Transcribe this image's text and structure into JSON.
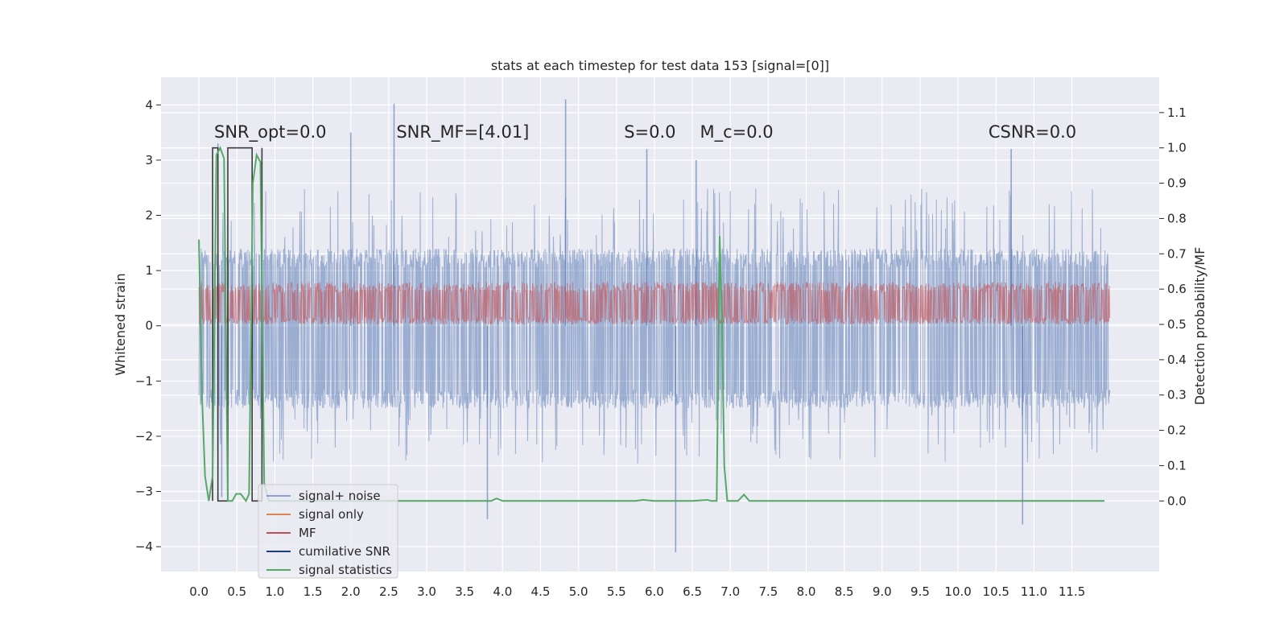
{
  "chart_data": {
    "type": "line",
    "title": "stats at each timestep for test data 153 [signal=[0]]",
    "xlabel": "",
    "ylabel": "Whitened strain",
    "y2label": "Detection probability/MF",
    "xlim": [
      -0.5,
      12.65
    ],
    "ylim": [
      -4.45,
      4.5
    ],
    "y2lim": [
      -0.2,
      1.2
    ],
    "x_ticks": [
      "0.0",
      "0.5",
      "1.0",
      "1.5",
      "2.0",
      "2.5",
      "3.0",
      "3.5",
      "4.0",
      "4.5",
      "5.0",
      "5.5",
      "6.0",
      "6.5",
      "7.0",
      "7.5",
      "8.0",
      "8.5",
      "9.0",
      "9.5",
      "10.0",
      "10.5",
      "11.0",
      "11.5"
    ],
    "y_ticks": [
      "4",
      "3",
      "2",
      "1",
      "0",
      "−1",
      "−2",
      "−3",
      "−4"
    ],
    "y2_ticks": [
      "1.1",
      "1.0",
      "0.9",
      "0.8",
      "0.7",
      "0.6",
      "0.5",
      "0.4",
      "0.3",
      "0.2",
      "0.1",
      "0.0"
    ],
    "grid": true,
    "legend_position": "lower-left",
    "annotations": [
      {
        "text": "SNR_opt=0.0",
        "x": 0.2,
        "y": 3.2
      },
      {
        "text": "SNR_MF=[4.01]",
        "x": 2.6,
        "y": 3.2
      },
      {
        "text": "S=0.0",
        "x": 5.6,
        "y": 3.2
      },
      {
        "text": "M_c=0.0",
        "x": 6.6,
        "y": 3.2
      },
      {
        "text": "CSNR=0.0",
        "x": 10.4,
        "y": 3.2
      }
    ],
    "series": [
      {
        "name": "signal+ noise",
        "color": "#4c72b0",
        "axis": "left",
        "band": {
          "x_start": 0.0,
          "x_end": 12.0,
          "typical_high": 1.8,
          "typical_low": -1.9
        },
        "peaks": [
          [
            0.25,
            3.3
          ],
          [
            0.3,
            -3.1
          ],
          [
            2.57,
            4.02
          ],
          [
            2.0,
            3.5
          ],
          [
            3.8,
            -3.5
          ],
          [
            4.83,
            4.1
          ],
          [
            5.9,
            3.2
          ],
          [
            6.28,
            -4.1
          ],
          [
            6.55,
            3.0
          ],
          [
            10.85,
            -3.6
          ],
          [
            10.7,
            3.2
          ]
        ]
      },
      {
        "name": "signal only",
        "color": "#dd8452",
        "axis": "left",
        "values_note": "zero everywhere"
      },
      {
        "name": "MF",
        "color": "#c44e52",
        "axis": "right",
        "band": {
          "x_start": 0.0,
          "x_end": 12.0,
          "low": 0.5,
          "high": 0.62
        }
      },
      {
        "name": "cumilative SNR",
        "color": "#1d3f80",
        "axis": "right",
        "x": [
          0.18,
          0.18,
          0.25,
          0.25,
          0.38,
          0.38,
          0.7,
          0.7,
          0.83,
          0.83
        ],
        "y": [
          0.0,
          1.0,
          1.0,
          0.0,
          0.0,
          1.0,
          1.0,
          0.0,
          0.0,
          1.0
        ]
      },
      {
        "name": "signal statistics",
        "color": "#55a868",
        "axis": "right",
        "x": [
          0.0,
          0.04,
          0.08,
          0.13,
          0.18,
          0.23,
          0.28,
          0.33,
          0.38,
          0.44,
          0.49,
          0.55,
          0.62,
          0.66,
          0.71,
          0.76,
          0.81,
          0.86,
          0.92,
          1.0,
          1.5,
          2.0,
          2.5,
          3.0,
          3.5,
          3.85,
          3.92,
          4.0,
          4.5,
          5.0,
          5.5,
          5.75,
          5.85,
          6.0,
          6.5,
          6.7,
          6.75,
          6.82,
          6.86,
          6.89,
          6.92,
          6.96,
          7.0,
          7.1,
          7.18,
          7.25,
          7.4,
          8.0,
          9.0,
          10.0,
          11.0,
          11.5,
          11.93
        ],
        "y": [
          0.74,
          0.3,
          0.07,
          0.0,
          0.07,
          0.98,
          1.0,
          0.97,
          0.0,
          0.0,
          0.02,
          0.02,
          0.0,
          0.02,
          0.9,
          0.98,
          0.96,
          0.05,
          0.0,
          0.0,
          0.0,
          0.0,
          0.0,
          0.0,
          0.0,
          0.0,
          0.007,
          0.0,
          0.0,
          0.0,
          0.0,
          0.0,
          0.003,
          0.0,
          0.0,
          0.003,
          0.0,
          0.0,
          0.75,
          0.5,
          0.1,
          0.0,
          0.0,
          0.0,
          0.018,
          0.0,
          0.0,
          0.0,
          0.0,
          0.0,
          0.0,
          0.0,
          0.0
        ]
      }
    ]
  }
}
